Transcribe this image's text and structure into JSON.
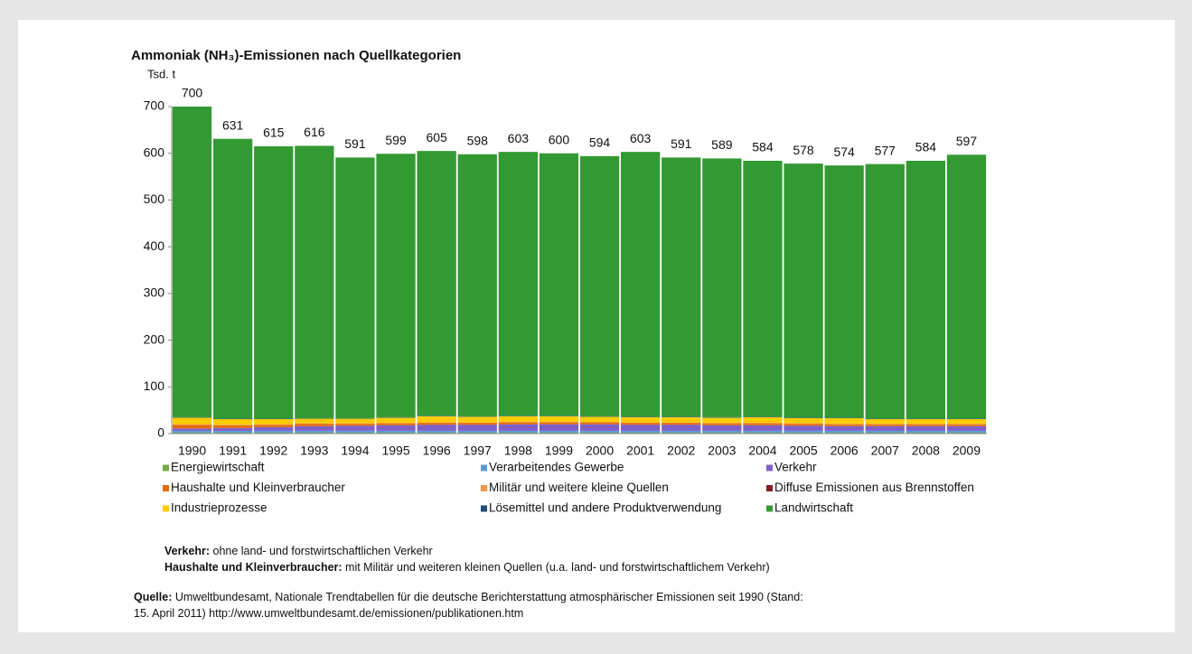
{
  "chart_data": {
    "type": "stacked_bar",
    "title": "Ammoniak (NH₃)-Emissionen nach Quellkategorien",
    "y_label": "Tsd. t",
    "categories": [
      "1990",
      "1991",
      "1992",
      "1993",
      "1994",
      "1995",
      "1996",
      "1997",
      "1998",
      "1999",
      "2000",
      "2001",
      "2002",
      "2003",
      "2004",
      "2005",
      "2006",
      "2007",
      "2008",
      "2009"
    ],
    "totals": [
      700,
      631,
      615,
      616,
      591,
      599,
      605,
      598,
      603,
      600,
      594,
      603,
      591,
      589,
      584,
      578,
      574,
      577,
      584,
      597
    ],
    "series": [
      {
        "name": "Energiewirtschaft",
        "color": "#70ad47",
        "values": [
          2,
          2,
          2,
          2,
          2,
          2,
          2,
          2,
          2,
          2,
          2,
          2,
          2,
          2,
          2,
          2,
          2,
          2,
          2,
          2
        ]
      },
      {
        "name": "Verarbeitendes Gewerbe",
        "color": "#5b9bd5",
        "values": [
          4,
          4,
          4,
          4,
          4,
          4,
          4,
          4,
          4,
          4,
          4,
          4,
          4,
          4,
          4,
          4,
          4,
          4,
          4,
          4
        ]
      },
      {
        "name": "Verkehr",
        "color": "#7f5fc8",
        "values": [
          5,
          6,
          8,
          10,
          11,
          12,
          13,
          13,
          14,
          14,
          14,
          13,
          13,
          12,
          12,
          11,
          10,
          10,
          10,
          10
        ]
      },
      {
        "name": "Haushalte und Kleinverbraucher",
        "color": "#e46c0a",
        "values": [
          8,
          6,
          5,
          5,
          4,
          4,
          4,
          4,
          4,
          4,
          4,
          4,
          4,
          4,
          4,
          4,
          4,
          4,
          4,
          4
        ]
      },
      {
        "name": "Militär und weitere kleine Quellen",
        "color": "#f79646",
        "values": [
          1,
          1,
          1,
          1,
          1,
          1,
          1,
          1,
          1,
          1,
          1,
          1,
          1,
          1,
          1,
          1,
          1,
          1,
          1,
          1
        ]
      },
      {
        "name": "Diffuse Emissionen aus Brennstoffen",
        "color": "#7f1f1f",
        "values": [
          0,
          0,
          0,
          0,
          0,
          0,
          0,
          0,
          0,
          0,
          0,
          0,
          0,
          0,
          0,
          0,
          0,
          0,
          0,
          0
        ]
      },
      {
        "name": "Industrieprozesse",
        "color": "#ffcc00",
        "values": [
          14,
          12,
          11,
          10,
          10,
          11,
          13,
          12,
          12,
          12,
          11,
          11,
          11,
          11,
          12,
          11,
          12,
          10,
          10,
          10
        ]
      },
      {
        "name": "Lösemittel und andere Produktverwendung",
        "color": "#1f4e79",
        "values": [
          1,
          1,
          1,
          1,
          1,
          1,
          1,
          1,
          1,
          1,
          1,
          1,
          1,
          1,
          1,
          1,
          1,
          1,
          1,
          1
        ]
      },
      {
        "name": "Landwirtschaft",
        "color": "#339933",
        "values": [
          665,
          599,
          583,
          583,
          558,
          564,
          567,
          561,
          565,
          562,
          557,
          567,
          555,
          554,
          548,
          544,
          540,
          545,
          552,
          565
        ]
      }
    ],
    "ylim": [
      0,
      700
    ],
    "yticks": [
      0,
      100,
      200,
      300,
      400,
      500,
      600,
      700
    ],
    "grid": false
  },
  "notes": [
    {
      "term": "Verkehr:",
      "text": " ohne land- und forstwirtschaftlichen Verkehr"
    },
    {
      "term": "Haushalte und Kleinverbraucher:",
      "text": " mit Militär und weiteren kleinen Quellen (u.a. land- und forstwirtschaftlichem Verkehr)"
    }
  ],
  "source": {
    "term": "Quelle:",
    "lines": [
      " Umweltbundesamt, Nationale Trendtabellen für die deutsche Berichterstattung atmosphärischer Emissionen seit 1990 (Stand:",
      "15. April 2011) http://www.umweltbundesamt.de/emissionen/publikationen.htm"
    ]
  }
}
